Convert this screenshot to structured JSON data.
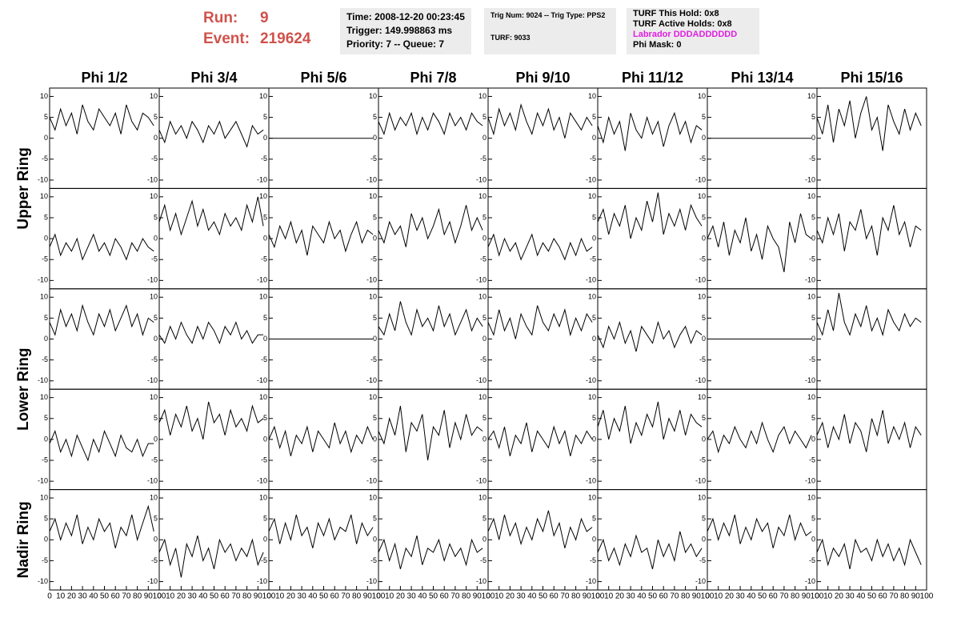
{
  "chart_data": {
    "type": "line",
    "run_label": "Run:",
    "run": "9",
    "event_label": "Event:",
    "event": "219624",
    "info": {
      "time": "Time: 2008-12-20 00:23:45",
      "trigger": "Trigger: 149.998863 ms",
      "priority": "Priority: 7 -- Queue: 7",
      "trig_num": "Trig Num: 9024 -- Trig Type: PPS2",
      "turf": "TURF: 9033",
      "this_hold": "TURF This Hold: 0x8",
      "active_holds": "TURF Active Holds: 0x8",
      "labrador": "Labrador DDDADDDDDD",
      "phi_mask": "Phi Mask: 0"
    },
    "labrador_color": "#e020e0",
    "columns": [
      "Phi 1/2",
      "Phi 3/4",
      "Phi 5/6",
      "Phi 7/8",
      "Phi 9/10",
      "Phi 11/12",
      "Phi 13/14",
      "Phi 15/16"
    ],
    "row_labels": [
      "Upper Ring",
      "Lower Ring",
      "Nadir Ring"
    ],
    "color": "#000000",
    "xlim": [
      0,
      100
    ],
    "xticks": [
      0,
      10,
      20,
      30,
      40,
      50,
      60,
      70,
      80,
      90,
      100
    ],
    "ylim": [
      -12,
      12
    ],
    "yticks": [
      -10,
      -5,
      0,
      5,
      10
    ],
    "x": [
      0,
      5,
      10,
      15,
      20,
      25,
      30,
      35,
      40,
      45,
      50,
      55,
      60,
      65,
      70,
      75,
      80,
      85,
      90,
      95
    ],
    "panels": [
      [
        [
          5,
          2,
          7,
          3,
          6,
          1,
          8,
          4,
          2,
          7,
          5,
          3,
          6,
          1,
          8,
          4,
          2,
          6,
          5,
          3
        ],
        [
          2,
          -1,
          4,
          1,
          3,
          0,
          4,
          2,
          -1,
          3,
          1,
          4,
          0,
          2,
          4,
          1,
          -2,
          3,
          1,
          2
        ],
        [
          0,
          0,
          0,
          0,
          0,
          0,
          0,
          0,
          0,
          0,
          0,
          0,
          0,
          0,
          0,
          0,
          0,
          0,
          0,
          0
        ],
        [
          4,
          1,
          6,
          2,
          5,
          3,
          6,
          1,
          5,
          2,
          6,
          4,
          1,
          6,
          3,
          5,
          2,
          6,
          4,
          3
        ],
        [
          5,
          1,
          7,
          3,
          6,
          2,
          8,
          4,
          1,
          6,
          3,
          7,
          2,
          5,
          0,
          6,
          4,
          2,
          5,
          3
        ],
        [
          3,
          -1,
          5,
          1,
          4,
          -3,
          6,
          2,
          0,
          5,
          1,
          4,
          -2,
          3,
          6,
          1,
          4,
          -1,
          3,
          2
        ],
        [
          0,
          0,
          0,
          0,
          0,
          0,
          0,
          0,
          0,
          0,
          0,
          0,
          0,
          0,
          0,
          0,
          0,
          0,
          0,
          0
        ],
        [
          5,
          1,
          8,
          -1,
          7,
          3,
          9,
          0,
          6,
          10,
          2,
          5,
          -3,
          8,
          4,
          1,
          7,
          2,
          6,
          3
        ]
      ],
      [
        [
          -2,
          1,
          -4,
          -1,
          -3,
          0,
          -5,
          -2,
          1,
          -3,
          -1,
          -4,
          0,
          -2,
          -5,
          -1,
          -3,
          0,
          -2,
          -3
        ],
        [
          4,
          8,
          2,
          6,
          1,
          5,
          9,
          3,
          7,
          2,
          4,
          1,
          6,
          3,
          5,
          2,
          8,
          4,
          10,
          3
        ],
        [
          1,
          -2,
          3,
          0,
          4,
          -1,
          2,
          -4,
          3,
          1,
          -1,
          4,
          0,
          2,
          -3,
          1,
          4,
          -1,
          2,
          1
        ],
        [
          2,
          -1,
          4,
          1,
          3,
          -2,
          6,
          2,
          5,
          0,
          3,
          7,
          1,
          4,
          -1,
          3,
          8,
          2,
          5,
          2
        ],
        [
          -2,
          1,
          -4,
          0,
          -3,
          -1,
          -5,
          -2,
          1,
          -4,
          -1,
          -3,
          0,
          -2,
          -5,
          -1,
          -4,
          0,
          -3,
          -2
        ],
        [
          4,
          7,
          1,
          6,
          3,
          8,
          0,
          5,
          2,
          9,
          4,
          11,
          1,
          6,
          3,
          7,
          2,
          8,
          5,
          3
        ],
        [
          0,
          3,
          -2,
          4,
          -4,
          2,
          -1,
          5,
          -3,
          1,
          -5,
          3,
          0,
          -2,
          -8,
          4,
          -1,
          6,
          1,
          0
        ],
        [
          2,
          -1,
          5,
          1,
          6,
          -3,
          4,
          2,
          7,
          0,
          3,
          -4,
          5,
          2,
          8,
          1,
          4,
          -2,
          3,
          2
        ]
      ],
      [
        [
          4,
          1,
          7,
          3,
          6,
          2,
          8,
          4,
          1,
          6,
          3,
          7,
          2,
          5,
          8,
          3,
          6,
          1,
          5,
          4
        ],
        [
          1,
          -1,
          3,
          0,
          4,
          1,
          -1,
          3,
          0,
          4,
          2,
          -1,
          3,
          1,
          4,
          0,
          2,
          -1,
          1,
          1
        ],
        [
          0,
          0,
          0,
          0,
          0,
          0,
          0,
          0,
          0,
          0,
          0,
          0,
          0,
          0,
          0,
          0,
          0,
          0,
          0,
          0
        ],
        [
          3,
          1,
          6,
          2,
          9,
          4,
          1,
          7,
          3,
          5,
          2,
          8,
          3,
          6,
          1,
          4,
          7,
          2,
          5,
          3
        ],
        [
          4,
          1,
          7,
          2,
          5,
          0,
          6,
          3,
          1,
          8,
          4,
          2,
          6,
          3,
          7,
          1,
          5,
          2,
          6,
          4
        ],
        [
          1,
          -2,
          3,
          0,
          4,
          -1,
          2,
          -3,
          3,
          1,
          -1,
          4,
          0,
          2,
          -2,
          1,
          3,
          -1,
          2,
          1
        ],
        [
          0,
          0,
          0,
          0,
          0,
          0,
          0,
          0,
          0,
          0,
          0,
          0,
          0,
          0,
          0,
          0,
          0,
          0,
          0,
          0
        ],
        [
          4,
          1,
          7,
          2,
          11,
          4,
          1,
          6,
          3,
          8,
          2,
          5,
          1,
          7,
          4,
          2,
          6,
          3,
          5,
          4
        ]
      ],
      [
        [
          -1,
          2,
          -3,
          0,
          -4,
          1,
          -2,
          -5,
          0,
          -3,
          2,
          -1,
          -4,
          1,
          -2,
          -3,
          0,
          -4,
          -1,
          -1
        ],
        [
          4,
          7,
          1,
          6,
          3,
          8,
          2,
          5,
          0,
          9,
          4,
          6,
          1,
          7,
          3,
          5,
          2,
          8,
          4,
          5
        ],
        [
          0,
          3,
          -2,
          2,
          -4,
          1,
          -1,
          3,
          -3,
          2,
          0,
          -2,
          4,
          -1,
          2,
          -3,
          1,
          -1,
          3,
          0
        ],
        [
          2,
          -1,
          5,
          1,
          8,
          -3,
          4,
          2,
          6,
          -5,
          3,
          1,
          7,
          -2,
          4,
          0,
          6,
          1,
          3,
          2
        ],
        [
          0,
          2,
          -2,
          3,
          -4,
          1,
          -1,
          4,
          -3,
          2,
          0,
          -2,
          3,
          -1,
          2,
          -4,
          1,
          -1,
          2,
          0
        ],
        [
          3,
          7,
          0,
          5,
          2,
          8,
          -1,
          4,
          1,
          6,
          3,
          9,
          0,
          5,
          2,
          7,
          1,
          6,
          4,
          3
        ],
        [
          0,
          2,
          -3,
          1,
          -1,
          3,
          0,
          -2,
          2,
          -1,
          4,
          0,
          -3,
          1,
          3,
          -1,
          2,
          0,
          -2,
          1
        ],
        [
          1,
          4,
          -2,
          3,
          0,
          6,
          -1,
          4,
          2,
          -3,
          5,
          1,
          7,
          -1,
          3,
          0,
          4,
          -2,
          3,
          1
        ]
      ],
      [
        [
          2,
          5,
          0,
          4,
          1,
          6,
          -1,
          3,
          0,
          5,
          2,
          4,
          -2,
          3,
          1,
          6,
          0,
          4,
          8,
          2
        ],
        [
          -3,
          0,
          -6,
          -2,
          -9,
          -1,
          -4,
          1,
          -5,
          -2,
          -7,
          0,
          -3,
          -1,
          -5,
          -2,
          -4,
          0,
          -6,
          -3
        ],
        [
          2,
          5,
          -1,
          4,
          0,
          6,
          1,
          3,
          -2,
          4,
          1,
          5,
          0,
          3,
          2,
          6,
          -1,
          4,
          1,
          3
        ],
        [
          -3,
          0,
          -5,
          -1,
          -7,
          -2,
          -4,
          1,
          -6,
          -2,
          -3,
          0,
          -5,
          -1,
          -4,
          -2,
          -6,
          0,
          -3,
          -2
        ],
        [
          2,
          5,
          0,
          6,
          1,
          4,
          -1,
          3,
          0,
          5,
          2,
          7,
          1,
          4,
          -2,
          3,
          0,
          5,
          2,
          3
        ],
        [
          -3,
          0,
          -5,
          -2,
          -6,
          -1,
          -4,
          1,
          -3,
          -2,
          -7,
          0,
          -4,
          -1,
          -5,
          2,
          -3,
          -1,
          -4,
          -2
        ],
        [
          2,
          5,
          0,
          4,
          1,
          6,
          -1,
          3,
          0,
          5,
          2,
          4,
          -2,
          3,
          1,
          6,
          0,
          4,
          1,
          2
        ],
        [
          -3,
          0,
          -6,
          -2,
          -4,
          -1,
          -7,
          0,
          -3,
          -2,
          -5,
          0,
          -4,
          -1,
          -5,
          -2,
          -6,
          0,
          -3,
          -6
        ]
      ]
    ]
  }
}
